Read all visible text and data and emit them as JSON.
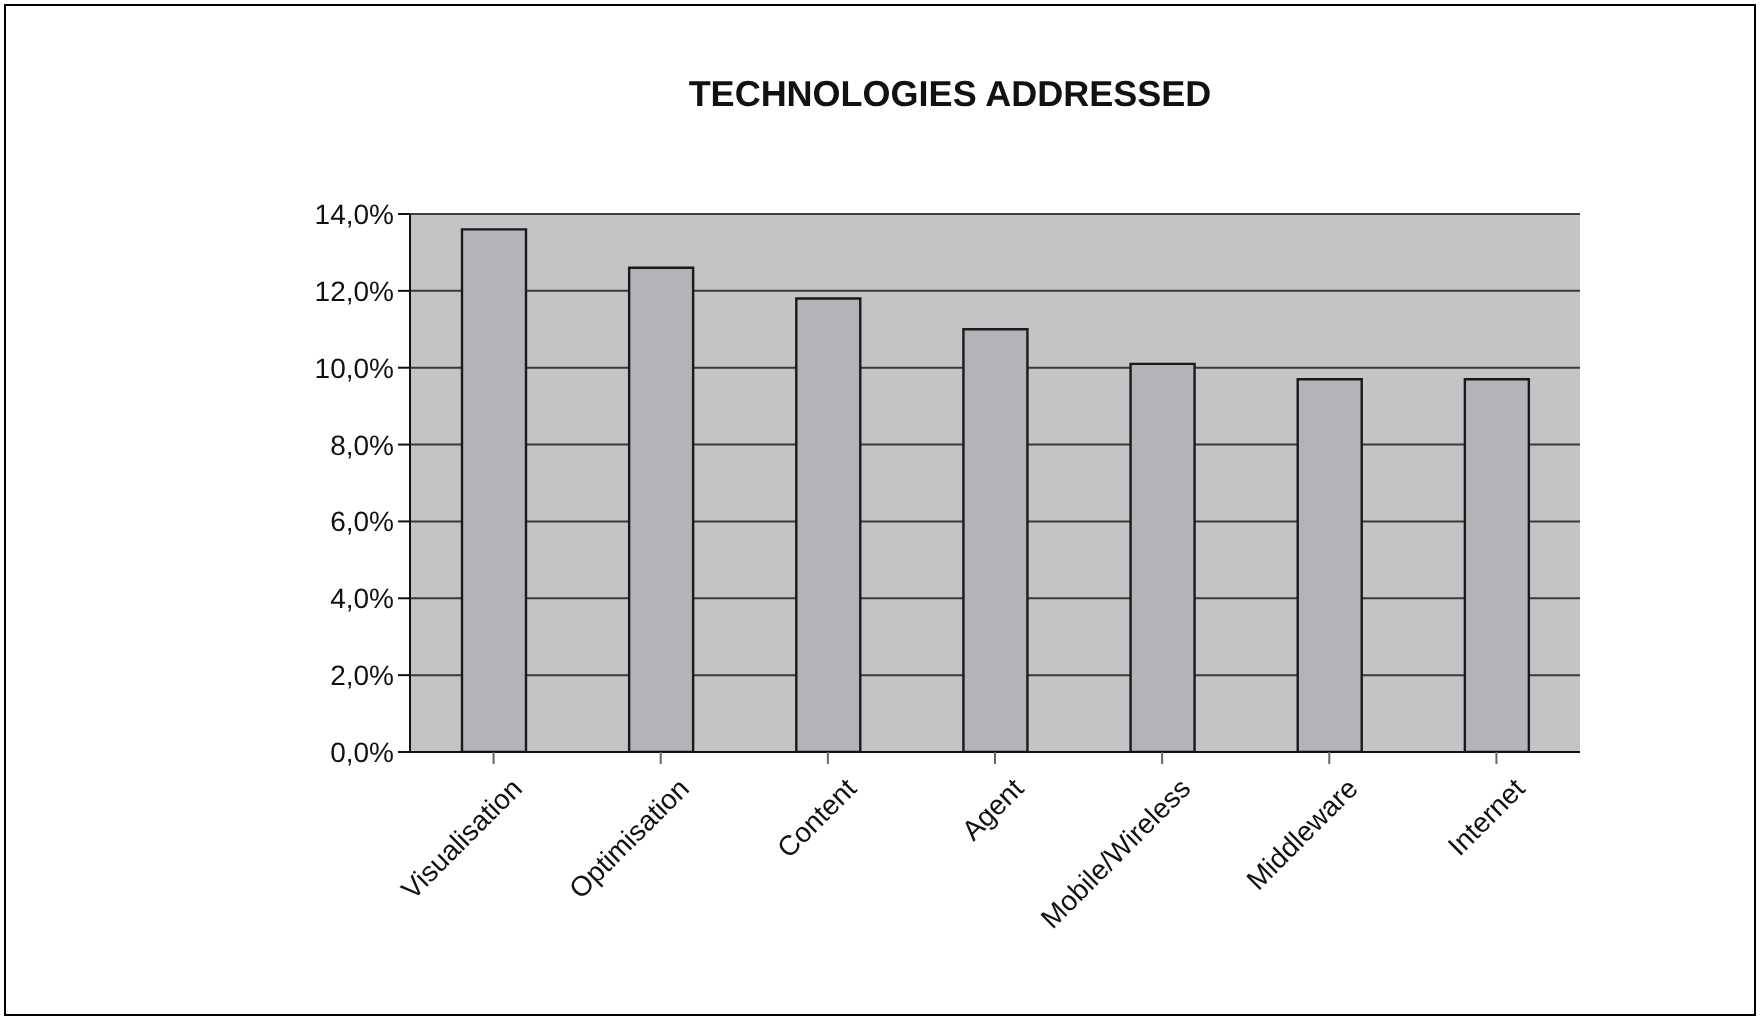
{
  "chart_data": {
    "type": "bar",
    "title": "TECHNOLOGIES ADDRESSED",
    "categories": [
      "Visualisation",
      "Optimisation",
      "Content",
      "Agent",
      "Mobile/Wireless",
      "Middleware",
      "Internet"
    ],
    "values": [
      13.6,
      12.6,
      11.8,
      11.0,
      10.1,
      9.7,
      9.7
    ],
    "color": "#b4b4b8",
    "ylim": [
      0,
      14
    ],
    "yticks": [
      {
        "value": 0,
        "label": "0,0%"
      },
      {
        "value": 2,
        "label": "2,0%"
      },
      {
        "value": 4,
        "label": "4,0%"
      },
      {
        "value": 6,
        "label": "6,0%"
      },
      {
        "value": 8,
        "label": "8,0%"
      },
      {
        "value": 10,
        "label": "10,0%"
      },
      {
        "value": 12,
        "label": "12,0%"
      },
      {
        "value": 14,
        "label": "14,0%"
      }
    ],
    "grid": "y"
  }
}
